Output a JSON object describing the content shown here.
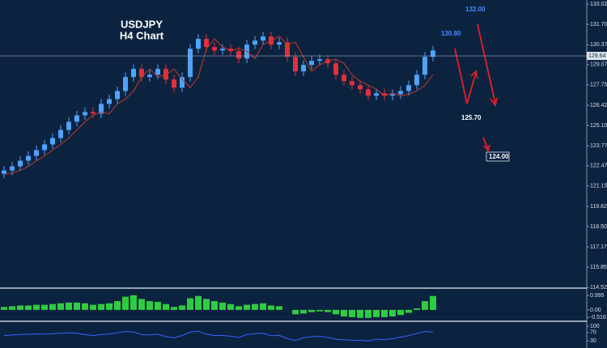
{
  "chart_data": [
    {
      "type": "candlestick",
      "title": "USDJPY",
      "subtitle": "H4 Chart",
      "open": [
        121.95,
        122.16,
        122.43,
        122.8,
        123.11,
        123.49,
        123.86,
        124.28,
        124.81,
        125.34,
        125.76,
        125.98,
        125.87,
        126.51,
        126.82,
        127.35,
        128.26,
        128.79,
        128.26,
        128.41,
        128.79,
        128.1,
        127.57,
        128.26,
        130.11,
        130.75,
        130.22,
        130.0,
        130.11,
        129.95,
        129.47,
        130.38,
        130.64,
        130.91,
        130.38,
        130.53,
        129.58,
        128.63,
        129.05,
        129.32,
        129.42,
        129.16,
        128.41,
        127.99,
        127.73,
        127.46,
        127.04,
        127.2,
        127.04,
        127.14,
        127.35,
        127.73,
        128.41,
        129.58
      ],
      "high": [
        122.46,
        122.73,
        123.1,
        123.41,
        123.79,
        124.16,
        124.58,
        125.11,
        125.64,
        126.06,
        126.28,
        126.28,
        126.81,
        127.12,
        127.65,
        128.56,
        129.09,
        129.09,
        128.71,
        129.09,
        129.09,
        128.4,
        128.56,
        130.41,
        131.05,
        131.05,
        130.52,
        130.41,
        130.41,
        130.25,
        130.68,
        130.94,
        131.21,
        131.21,
        130.83,
        130.83,
        129.88,
        129.35,
        129.62,
        129.72,
        129.72,
        129.46,
        128.71,
        128.29,
        128.03,
        127.76,
        127.5,
        127.5,
        127.44,
        127.65,
        128.03,
        128.71,
        129.88,
        130.3
      ],
      "low": [
        121.65,
        121.86,
        122.13,
        122.5,
        122.81,
        123.19,
        123.56,
        123.98,
        124.51,
        125.04,
        125.46,
        125.57,
        125.57,
        126.21,
        126.52,
        127.05,
        127.96,
        127.96,
        127.96,
        128.11,
        127.8,
        127.27,
        127.27,
        127.96,
        129.81,
        129.92,
        129.7,
        129.7,
        129.65,
        129.17,
        129.17,
        130.08,
        130.34,
        130.08,
        130.08,
        129.28,
        128.33,
        128.33,
        128.75,
        129.02,
        128.86,
        128.11,
        127.69,
        127.43,
        127.16,
        126.74,
        126.74,
        126.74,
        126.74,
        126.84,
        127.05,
        127.43,
        128.11,
        129.28
      ],
      "close": [
        122.16,
        122.43,
        122.8,
        123.11,
        123.49,
        123.86,
        124.28,
        124.81,
        125.34,
        125.76,
        125.98,
        125.87,
        126.51,
        126.82,
        127.35,
        128.26,
        128.79,
        128.26,
        128.41,
        128.79,
        128.1,
        127.57,
        128.26,
        130.11,
        130.75,
        130.22,
        130.0,
        130.11,
        129.95,
        129.47,
        130.38,
        130.64,
        130.91,
        130.38,
        130.53,
        129.58,
        128.63,
        129.05,
        129.32,
        129.42,
        129.16,
        128.41,
        127.99,
        127.73,
        127.46,
        127.04,
        127.2,
        127.04,
        127.14,
        127.35,
        127.73,
        128.41,
        129.58,
        130.0
      ],
      "up_color": "#4da3ff",
      "down_color": "#e0303a",
      "series": [
        {
          "color": "#c0392b",
          "values": [
            121.9,
            122.0,
            122.16,
            122.43,
            122.8,
            123.11,
            123.49,
            123.86,
            124.28,
            124.81,
            125.34,
            125.76,
            125.98,
            125.87,
            126.51,
            126.82,
            127.35,
            128.26,
            128.79,
            128.26,
            128.41,
            128.79,
            128.1,
            127.57,
            128.26,
            130.11,
            130.75,
            130.22,
            130.0,
            130.11,
            129.95,
            129.47,
            130.38,
            130.64,
            130.91,
            130.38,
            130.53,
            129.58,
            128.63,
            129.05,
            129.32,
            129.42,
            129.16,
            128.41,
            127.99,
            127.73,
            127.46,
            127.04,
            127.2,
            127.04,
            127.14,
            127.35,
            127.73,
            128.41
          ]
        }
      ],
      "current_price": 129.64,
      "annotations": [
        "132.00",
        "130.80",
        "125.70",
        "124.00"
      ],
      "ylim": [
        114.48,
        133.29
      ],
      "yticks": [
        133.02,
        {
          "value": 131.7,
          "label": "131.70"
        },
        130.37,
        129.07,
        127.75,
        126.42,
        {
          "value": 125.1,
          "label": "125.10"
        },
        123.77,
        122.47,
        121.15,
        119.82,
        {
          "value": 118.5,
          "label": "118.50"
        },
        117.17,
        115.85,
        114.52
      ]
    },
    {
      "type": "bar",
      "color": "#2ecc40",
      "values": [
        0.2,
        0.25,
        0.3,
        0.3,
        0.35,
        0.35,
        0.4,
        0.45,
        0.5,
        0.5,
        0.45,
        0.35,
        0.4,
        0.45,
        0.6,
        0.9,
        1.0,
        0.75,
        0.6,
        0.55,
        0.4,
        0.2,
        0.3,
        0.8,
        0.95,
        0.75,
        0.6,
        0.5,
        0.4,
        0.25,
        0.35,
        0.4,
        0.45,
        0.3,
        0.25,
        0.0,
        -0.3,
        -0.25,
        -0.15,
        -0.1,
        -0.15,
        -0.3,
        -0.45,
        -0.5,
        -0.55,
        -0.55,
        -0.5,
        -0.5,
        -0.45,
        -0.35,
        -0.2,
        0.1,
        0.6,
        0.95
      ],
      "ylim": [
        -0.67,
        1.38
      ],
      "yticks": [
        0.995,
        {
          "value": 0,
          "label": "0.00"
        },
        -0.516
      ]
    },
    {
      "type": "line",
      "color": "#3366ff",
      "values": [
        55,
        58,
        60,
        62,
        63,
        62,
        64,
        66,
        68,
        66,
        60,
        55,
        60,
        63,
        68,
        75,
        72,
        60,
        58,
        62,
        50,
        45,
        55,
        72,
        76,
        62,
        55,
        56,
        52,
        46,
        60,
        64,
        66,
        54,
        56,
        40,
        32,
        45,
        50,
        52,
        46,
        38,
        35,
        33,
        32,
        30,
        38,
        36,
        40,
        48,
        55,
        65,
        75,
        72
      ],
      "ylim": [
        0,
        119
      ],
      "yticks": [
        100,
        70,
        30
      ]
    }
  ]
}
